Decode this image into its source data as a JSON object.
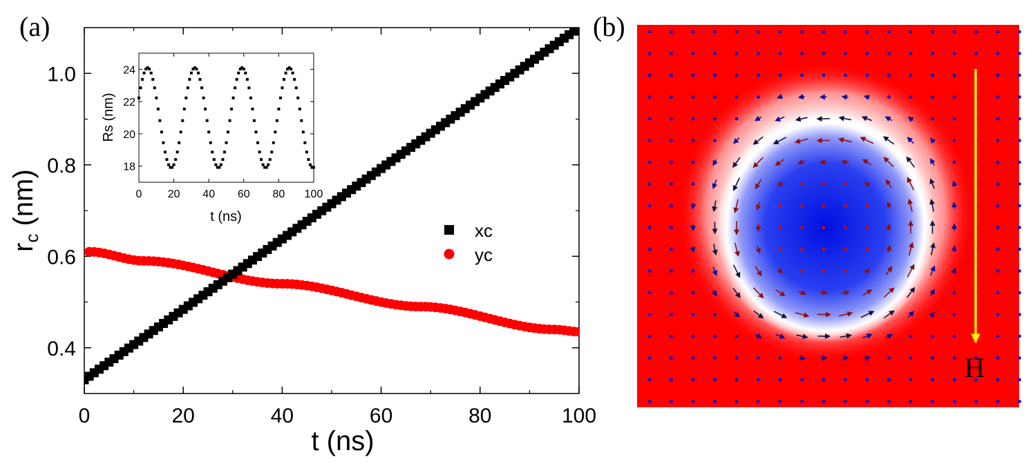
{
  "panel_a_label": "(a)",
  "panel_b_label": "(b)",
  "chart_data": [
    {
      "type": "scatter",
      "xlabel": "t (ns)",
      "ylabel_main": "r",
      "ylabel_sub": "c",
      "ylabel_unit": " (nm)",
      "xlim": [
        0,
        100
      ],
      "ylim": [
        0.3,
        1.1
      ],
      "xticks": [
        0,
        20,
        40,
        60,
        80,
        100
      ],
      "yticks": [
        0.4,
        0.6,
        0.8,
        1.0
      ],
      "xtick_labels": [
        "0",
        "20",
        "40",
        "60",
        "80",
        "100"
      ],
      "ytick_labels": [
        "0.4",
        "0.6",
        "0.8",
        "1.0"
      ],
      "legend_position": "right-middle",
      "series": [
        {
          "name": "xc",
          "color": "#000000",
          "marker": "square",
          "start": 0.33,
          "end": 1.1,
          "t_start": 0,
          "t_end": 100,
          "t_step": 1
        },
        {
          "name": "yc",
          "color": "#ff0000",
          "marker": "circle",
          "t_start": 1,
          "t_end": 100,
          "t_step": 1,
          "plateaus": [
            [
              1,
              0.61
            ],
            [
              12,
              0.59
            ],
            [
              40,
              0.54
            ],
            [
              68,
              0.49
            ],
            [
              95,
              0.44
            ],
            [
              100,
              0.435
            ]
          ]
        }
      ]
    },
    {
      "type": "scatter",
      "title": "inset",
      "xlabel": "t (ns)",
      "ylabel": "Rs (nm)",
      "xlim": [
        0,
        100
      ],
      "ylim": [
        17,
        25
      ],
      "xticks": [
        0,
        20,
        40,
        60,
        80,
        100
      ],
      "yticks": [
        18,
        20,
        22,
        24
      ],
      "xtick_labels": [
        "0",
        "20",
        "40",
        "60",
        "80",
        "100"
      ],
      "ytick_labels": [
        "18",
        "20",
        "22",
        "24"
      ],
      "series": [
        {
          "name": "Rs",
          "color": "#000000",
          "marker": "square",
          "mean": 21.0,
          "amplitude": 3.1,
          "period": 27,
          "first_max_t": 5,
          "t_step": 1
        }
      ]
    }
  ],
  "field_label": "H",
  "field_arrow_color": "#ffee00",
  "colors": {
    "up": "#ff0000",
    "down": "#0000ff",
    "wall": "#ffffff"
  }
}
